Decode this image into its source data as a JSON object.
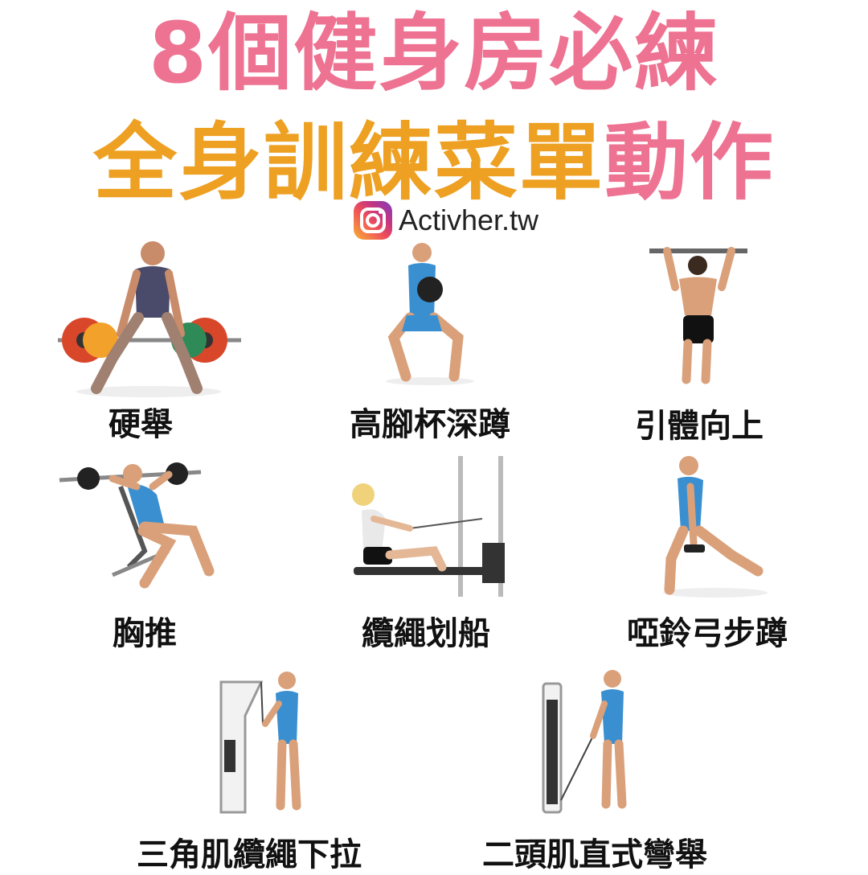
{
  "title": {
    "line1": "8個健身房必練",
    "line2_orange": "全身訓練菜單",
    "line2_pink": "動作"
  },
  "brand": {
    "icon": "instagram-icon",
    "handle": "Activher.tw"
  },
  "colors": {
    "title_pink": "#ee7292",
    "title_orange": "#eda022",
    "athlete_blue": "#3a8fd0",
    "label_black": "#111111"
  },
  "exercises": [
    {
      "label": "硬舉"
    },
    {
      "label": "高腳杯深蹲"
    },
    {
      "label": "引體向上"
    },
    {
      "label": "胸推"
    },
    {
      "label": "纜繩划船"
    },
    {
      "label": "啞鈴弓步蹲"
    },
    {
      "label": "三角肌纜繩下拉"
    },
    {
      "label": "二頭肌直式彎舉"
    }
  ]
}
